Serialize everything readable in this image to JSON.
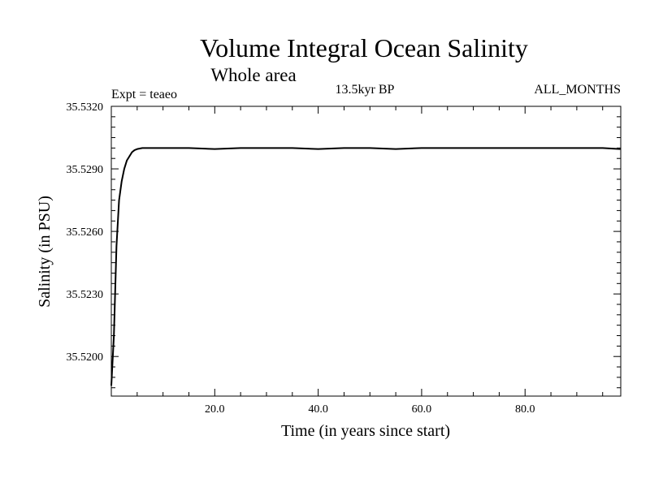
{
  "chart_data": {
    "type": "line",
    "title": "Volume Integral Ocean Salinity",
    "subtitle": "Whole area",
    "experiment": "Expt = teaeo",
    "period": "13.5kyr BP",
    "season": "ALL_MONTHS",
    "xlabel": "Time (in years since start)",
    "ylabel": "Salinity (in PSU)",
    "xlim": [
      0,
      98.5
    ],
    "ylim": [
      35.5181,
      35.532
    ],
    "xticks": [
      20,
      40,
      60,
      80
    ],
    "xtick_labels": [
      "20.0",
      "40.0",
      "60.0",
      "80.0"
    ],
    "yticks": [
      35.52,
      35.523,
      35.526,
      35.529,
      35.532
    ],
    "ytick_labels": [
      "35.5200",
      "35.5230",
      "35.5260",
      "35.5290",
      "35.5320"
    ],
    "series": [
      {
        "name": "Salinity",
        "x": [
          0,
          0.5,
          1,
          1.5,
          2,
          2.5,
          3,
          3.5,
          4,
          4.5,
          5,
          6,
          7,
          8,
          10,
          12,
          15,
          20,
          25,
          30,
          35,
          40,
          45,
          50,
          55,
          60,
          65,
          70,
          75,
          80,
          85,
          90,
          95,
          98.5
        ],
        "y": [
          35.5186,
          35.521,
          35.5253,
          35.5275,
          35.5284,
          35.529,
          35.5294,
          35.5296,
          35.5298,
          35.5299,
          35.52995,
          35.53,
          35.53,
          35.53,
          35.53,
          35.53,
          35.53,
          35.52995,
          35.53,
          35.53,
          35.53,
          35.52995,
          35.53,
          35.53,
          35.52995,
          35.53,
          35.53,
          35.53,
          35.53,
          35.53,
          35.53,
          35.53,
          35.53,
          35.52995
        ]
      }
    ]
  }
}
